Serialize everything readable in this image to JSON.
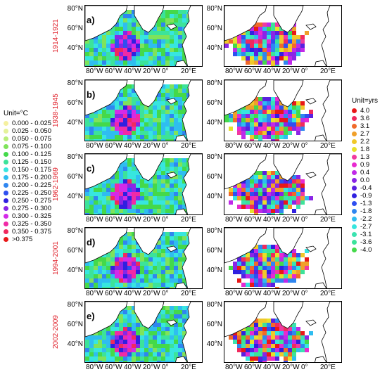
{
  "panels": [
    {
      "letter": "a)",
      "period": "1914-1921"
    },
    {
      "letter": "b)",
      "period": "1938-1945"
    },
    {
      "letter": "c)",
      "period": "1962-1969"
    },
    {
      "letter": "d)",
      "period": "1994-2001"
    },
    {
      "letter": "e)",
      "period": "2002-2009"
    }
  ],
  "lat_labels": [
    "80°N",
    "60°N",
    "40°N"
  ],
  "lon_labels": [
    "80°W",
    "60°W",
    "40°W",
    "20°W",
    "0°",
    "20°E"
  ],
  "legend_left": {
    "title": "Unit=°C",
    "items": [
      {
        "label": "0.000 - 0.025",
        "color": "#f5f0a0"
      },
      {
        "label": "0.025 - 0.050",
        "color": "#e4f29a"
      },
      {
        "label": "0.050 - 0.075",
        "color": "#b9ee7a"
      },
      {
        "label": "0.075 - 0.100",
        "color": "#7fe35a"
      },
      {
        "label": "0.100 - 0.125",
        "color": "#44d94a"
      },
      {
        "label": "0.125 - 0.150",
        "color": "#3ce39a"
      },
      {
        "label": "0.150 - 0.175",
        "color": "#37e6df"
      },
      {
        "label": "0.175 - 0.200",
        "color": "#2fbdf0"
      },
      {
        "label": "0.200 - 0.225",
        "color": "#2f86f0"
      },
      {
        "label": "0.225 - 0.250",
        "color": "#2f4ff0"
      },
      {
        "label": "0.250 - 0.275",
        "color": "#3020e0"
      },
      {
        "label": "0.275 - 0.300",
        "color": "#8a25e6"
      },
      {
        "label": "0.300 - 0.325",
        "color": "#d42ae8"
      },
      {
        "label": "0.325 - 0.350",
        "color": "#f02aa6"
      },
      {
        "label": "0.350 - 0.375",
        "color": "#f02a5e"
      },
      {
        "label": ">0.375",
        "color": "#e81818"
      }
    ]
  },
  "legend_right": {
    "title": "Unit=yrs",
    "items": [
      {
        "label": "4.0",
        "color": "#e81818"
      },
      {
        "label": "3.6",
        "color": "#f02a5e"
      },
      {
        "label": "3.1",
        "color": "#f06a2a"
      },
      {
        "label": "2.7",
        "color": "#f0a02a"
      },
      {
        "label": "2.2",
        "color": "#f0c82a"
      },
      {
        "label": "1.8",
        "color": "#e8e02a"
      },
      {
        "label": "1.3",
        "color": "#f03aa0"
      },
      {
        "label": "0.9",
        "color": "#e82ad0"
      },
      {
        "label": "0.4",
        "color": "#c02ae8"
      },
      {
        "label": "0.0",
        "color": "#8a25e6"
      },
      {
        "label": "-0.4",
        "color": "#5a20e0"
      },
      {
        "label": "-0.9",
        "color": "#3020e0"
      },
      {
        "label": "-1.3",
        "color": "#2f4ff0"
      },
      {
        "label": "-1.8",
        "color": "#2f86f0"
      },
      {
        "label": "-2.2",
        "color": "#2fbdf0"
      },
      {
        "label": "-2.7",
        "color": "#37e6df"
      },
      {
        "label": "-3.1",
        "color": "#3ce3b0"
      },
      {
        "label": "-3.6",
        "color": "#3ce39a"
      },
      {
        "label": "-4.0",
        "color": "#44d94a"
      }
    ]
  }
}
